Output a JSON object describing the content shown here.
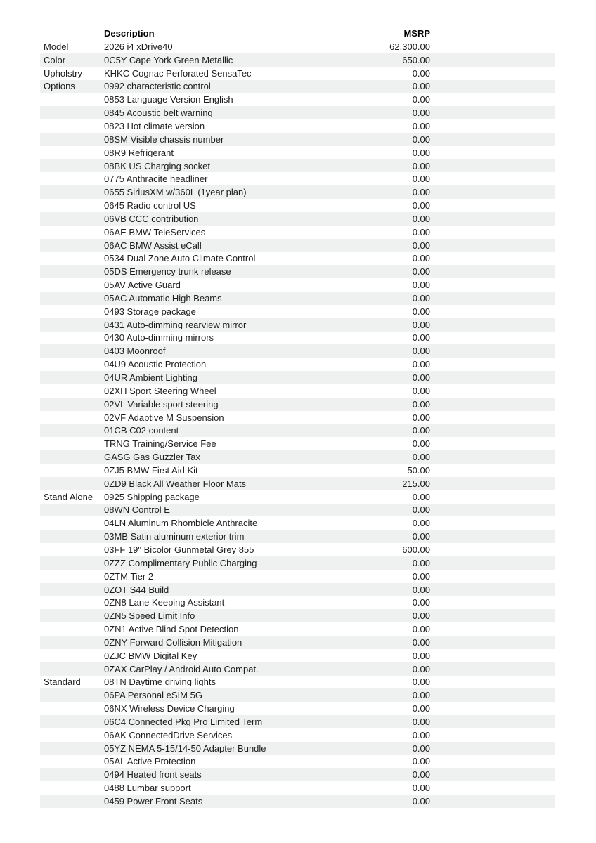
{
  "table": {
    "shade_color": "#eef1f0",
    "header": {
      "category": "",
      "description": "Description",
      "msrp": "MSRP"
    },
    "rows": [
      {
        "category": "Model",
        "description": "2026 i4 xDrive40",
        "msrp": "62,300.00"
      },
      {
        "category": "Color",
        "description": "0C5Y Cape York Green Metallic",
        "msrp": "650.00"
      },
      {
        "category": "Upholstry",
        "description": "KHKC Cognac Perforated SensaTec",
        "msrp": "0.00"
      },
      {
        "category": "Options",
        "description": "0992 characteristic control",
        "msrp": "0.00"
      },
      {
        "category": "",
        "description": "0853 Language Version English",
        "msrp": "0.00"
      },
      {
        "category": "",
        "description": "0845 Acoustic belt warning",
        "msrp": "0.00"
      },
      {
        "category": "",
        "description": "0823 Hot climate version",
        "msrp": "0.00"
      },
      {
        "category": "",
        "description": "08SM Visible chassis number",
        "msrp": "0.00"
      },
      {
        "category": "",
        "description": "08R9 Refrigerant",
        "msrp": "0.00"
      },
      {
        "category": "",
        "description": "08BK US Charging socket",
        "msrp": "0.00"
      },
      {
        "category": "",
        "description": "0775 Anthracite headliner",
        "msrp": "0.00"
      },
      {
        "category": "",
        "description": "0655 SiriusXM w/360L (1year plan)",
        "msrp": "0.00"
      },
      {
        "category": "",
        "description": "0645 Radio control US",
        "msrp": "0.00"
      },
      {
        "category": "",
        "description": "06VB CCC contribution",
        "msrp": "0.00"
      },
      {
        "category": "",
        "description": "06AE BMW TeleServices",
        "msrp": "0.00"
      },
      {
        "category": "",
        "description": "06AC BMW Assist eCall",
        "msrp": "0.00"
      },
      {
        "category": "",
        "description": "0534 Dual Zone Auto Climate Control",
        "msrp": "0.00"
      },
      {
        "category": "",
        "description": "05DS Emergency trunk release",
        "msrp": "0.00"
      },
      {
        "category": "",
        "description": "05AV Active Guard",
        "msrp": "0.00"
      },
      {
        "category": "",
        "description": "05AC Automatic High Beams",
        "msrp": "0.00"
      },
      {
        "category": "",
        "description": "0493 Storage package",
        "msrp": "0.00"
      },
      {
        "category": "",
        "description": "0431 Auto-dimming rearview mirror",
        "msrp": "0.00"
      },
      {
        "category": "",
        "description": "0430 Auto-dimming mirrors",
        "msrp": "0.00"
      },
      {
        "category": "",
        "description": "0403 Moonroof",
        "msrp": "0.00"
      },
      {
        "category": "",
        "description": "04U9 Acoustic Protection",
        "msrp": "0.00"
      },
      {
        "category": "",
        "description": "04UR Ambient Lighting",
        "msrp": "0.00"
      },
      {
        "category": "",
        "description": "02XH Sport Steering Wheel",
        "msrp": "0.00"
      },
      {
        "category": "",
        "description": "02VL Variable sport steering",
        "msrp": "0.00"
      },
      {
        "category": "",
        "description": "02VF Adaptive M Suspension",
        "msrp": "0.00"
      },
      {
        "category": "",
        "description": "01CB C02 content",
        "msrp": "0.00"
      },
      {
        "category": "",
        "description": "TRNG Training/Service Fee",
        "msrp": "0.00"
      },
      {
        "category": "",
        "description": "GASG Gas Guzzler Tax",
        "msrp": "0.00"
      },
      {
        "category": "",
        "description": "0ZJ5 BMW First Aid Kit",
        "msrp": "50.00"
      },
      {
        "category": "",
        "description": "0ZD9 Black All Weather Floor Mats",
        "msrp": "215.00"
      },
      {
        "category": "Stand Alone",
        "description": "0925 Shipping package",
        "msrp": "0.00"
      },
      {
        "category": "",
        "description": "08WN Control E",
        "msrp": "0.00"
      },
      {
        "category": "",
        "description": "04LN Aluminum Rhombicle Anthracite",
        "msrp": "0.00"
      },
      {
        "category": "",
        "description": "03MB Satin aluminum exterior trim",
        "msrp": "0.00"
      },
      {
        "category": "",
        "description": "03FF 19\" Bicolor Gunmetal Grey 855",
        "msrp": "600.00"
      },
      {
        "category": "",
        "description": "0ZZZ Complimentary Public Charging",
        "msrp": "0.00"
      },
      {
        "category": "",
        "description": "0ZTM Tier 2",
        "msrp": "0.00"
      },
      {
        "category": "",
        "description": "0ZOT S44 Build",
        "msrp": "0.00"
      },
      {
        "category": "",
        "description": "0ZN8 Lane Keeping Assistant",
        "msrp": "0.00"
      },
      {
        "category": "",
        "description": "0ZN5 Speed Limit Info",
        "msrp": "0.00"
      },
      {
        "category": "",
        "description": "0ZN1 Active Blind Spot Detection",
        "msrp": "0.00"
      },
      {
        "category": "",
        "description": "0ZNY Forward Collision Mitigation",
        "msrp": "0.00"
      },
      {
        "category": "",
        "description": "0ZJC BMW Digital Key",
        "msrp": "0.00"
      },
      {
        "category": "",
        "description": "0ZAX CarPlay / Android Auto Compat.",
        "msrp": "0.00"
      },
      {
        "category": "Standard",
        "description": "08TN Daytime driving lights",
        "msrp": "0.00"
      },
      {
        "category": "",
        "description": "06PA Personal eSIM 5G",
        "msrp": "0.00"
      },
      {
        "category": "",
        "description": "06NX Wireless Device Charging",
        "msrp": "0.00"
      },
      {
        "category": "",
        "description": "06C4 Connected Pkg Pro Limited Term",
        "msrp": "0.00"
      },
      {
        "category": "",
        "description": "06AK ConnectedDrive Services",
        "msrp": "0.00"
      },
      {
        "category": "",
        "description": "05YZ NEMA 5-15/14-50 Adapter Bundle",
        "msrp": "0.00"
      },
      {
        "category": "",
        "description": "05AL Active Protection",
        "msrp": "0.00"
      },
      {
        "category": "",
        "description": "0494 Heated front seats",
        "msrp": "0.00"
      },
      {
        "category": "",
        "description": "0488 Lumbar support",
        "msrp": "0.00"
      },
      {
        "category": "",
        "description": "0459 Power Front Seats",
        "msrp": "0.00"
      }
    ]
  }
}
